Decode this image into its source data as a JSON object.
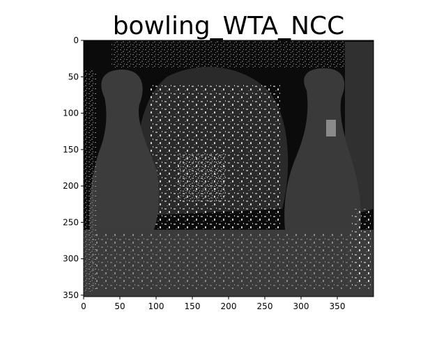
{
  "figure": {
    "title": "bowling_WTA_NCC",
    "image_size": {
      "width": 400,
      "height": 352
    },
    "x_ticks": [
      0,
      50,
      100,
      150,
      200,
      250,
      300,
      350
    ],
    "y_ticks": [
      0,
      50,
      100,
      150,
      200,
      250,
      300,
      350
    ],
    "colormap": "gray",
    "colors": {
      "background": "#ffffff",
      "axes_frame": "#000000",
      "far_region": "#0b0b0b",
      "left_pin": "#3c3c3c",
      "right_pin": "#3a3a3a",
      "ball": "#2a2a2a",
      "right_wall": "#303030",
      "floor": "#3b3b3b",
      "noise_light": "#d8d8d8"
    }
  }
}
